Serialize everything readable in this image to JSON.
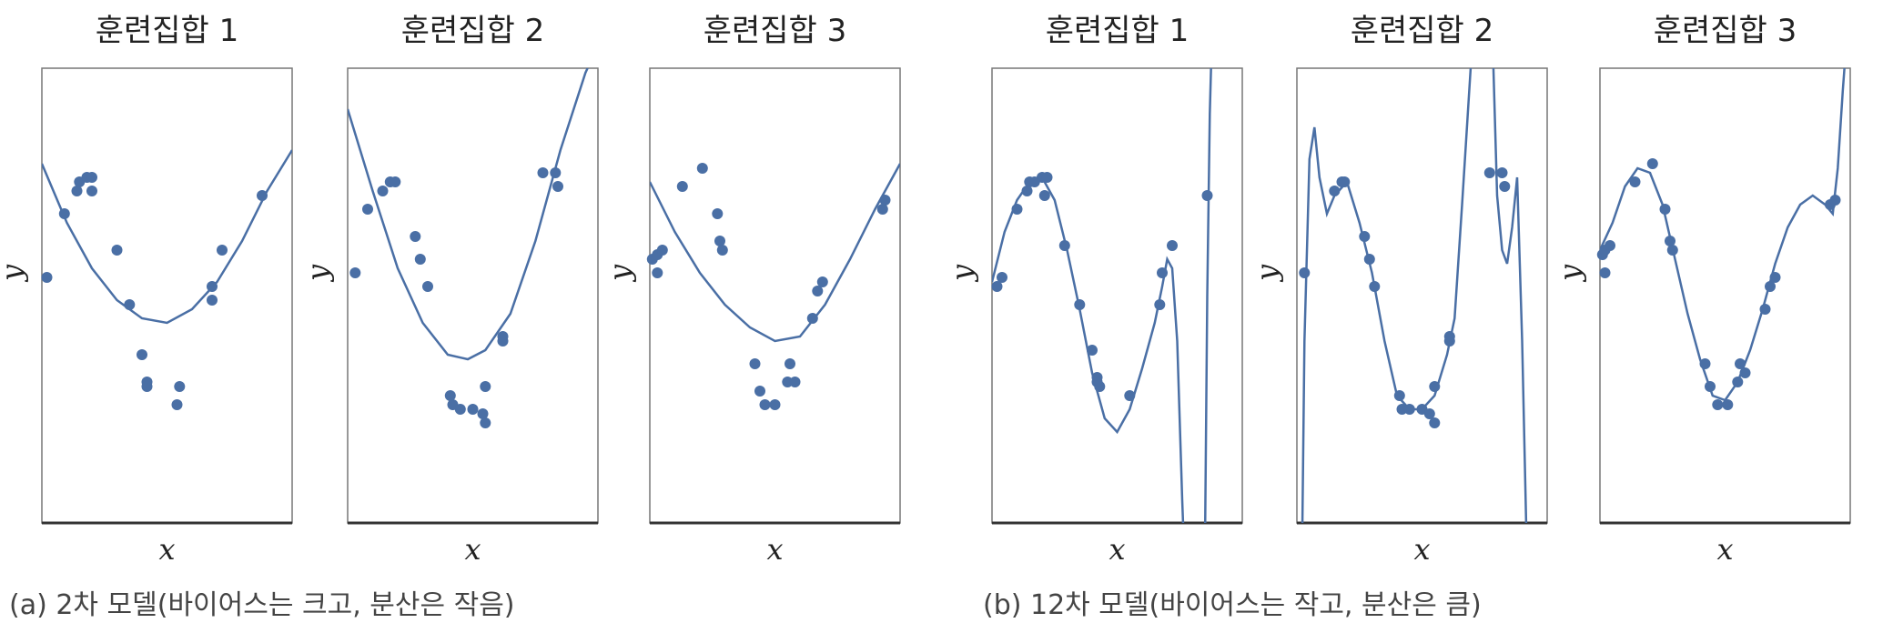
{
  "captions": {
    "a": "(a) 2차 모델(바이어스는 크고, 분산은 작음)",
    "b": "(b) 12차 모델(바이어스는 작고, 분산은 큼)"
  },
  "colors": {
    "series": "#4a6fa5",
    "frame": "#333333",
    "text": "#222222"
  },
  "chart_data": [
    {
      "type": "scatter",
      "group": "a",
      "title": "훈련집합 1",
      "xlabel": "x",
      "ylabel": "y",
      "xlim": [
        0,
        1
      ],
      "ylim": [
        0,
        1
      ],
      "grid": false,
      "points": [
        [
          0.02,
          0.54
        ],
        [
          0.09,
          0.68
        ],
        [
          0.14,
          0.73
        ],
        [
          0.15,
          0.75
        ],
        [
          0.18,
          0.76
        ],
        [
          0.2,
          0.76
        ],
        [
          0.2,
          0.73
        ],
        [
          0.3,
          0.6
        ],
        [
          0.35,
          0.48
        ],
        [
          0.4,
          0.37
        ],
        [
          0.42,
          0.31
        ],
        [
          0.42,
          0.3
        ],
        [
          0.55,
          0.3
        ],
        [
          0.54,
          0.26
        ],
        [
          0.68,
          0.49
        ],
        [
          0.68,
          0.52
        ],
        [
          0.72,
          0.6
        ],
        [
          0.88,
          0.72
        ]
      ],
      "curve": [
        [
          0,
          0.79
        ],
        [
          0.1,
          0.66
        ],
        [
          0.2,
          0.56
        ],
        [
          0.3,
          0.49
        ],
        [
          0.4,
          0.45
        ],
        [
          0.5,
          0.44
        ],
        [
          0.6,
          0.47
        ],
        [
          0.7,
          0.53
        ],
        [
          0.8,
          0.62
        ],
        [
          0.9,
          0.73
        ],
        [
          1,
          0.82
        ]
      ]
    },
    {
      "type": "scatter",
      "group": "a",
      "title": "훈련집합 2",
      "xlabel": "x",
      "ylabel": "y",
      "xlim": [
        0,
        1
      ],
      "ylim": [
        0,
        1
      ],
      "grid": false,
      "points": [
        [
          0.03,
          0.55
        ],
        [
          0.08,
          0.69
        ],
        [
          0.14,
          0.73
        ],
        [
          0.17,
          0.75
        ],
        [
          0.19,
          0.75
        ],
        [
          0.27,
          0.63
        ],
        [
          0.29,
          0.58
        ],
        [
          0.32,
          0.52
        ],
        [
          0.41,
          0.28
        ],
        [
          0.42,
          0.26
        ],
        [
          0.45,
          0.25
        ],
        [
          0.5,
          0.25
        ],
        [
          0.54,
          0.24
        ],
        [
          0.55,
          0.22
        ],
        [
          0.55,
          0.3
        ],
        [
          0.62,
          0.4
        ],
        [
          0.62,
          0.41
        ],
        [
          0.78,
          0.77
        ],
        [
          0.83,
          0.77
        ],
        [
          0.84,
          0.74
        ]
      ],
      "curve": [
        [
          0,
          0.91
        ],
        [
          0.1,
          0.73
        ],
        [
          0.2,
          0.56
        ],
        [
          0.3,
          0.44
        ],
        [
          0.4,
          0.37
        ],
        [
          0.48,
          0.36
        ],
        [
          0.55,
          0.38
        ],
        [
          0.65,
          0.46
        ],
        [
          0.75,
          0.62
        ],
        [
          0.85,
          0.82
        ],
        [
          0.95,
          0.99
        ],
        [
          1,
          1.05
        ]
      ]
    },
    {
      "type": "scatter",
      "group": "a",
      "title": "훈련집합 3",
      "xlabel": "x",
      "ylabel": "y",
      "xlim": [
        0,
        1
      ],
      "ylim": [
        0,
        1
      ],
      "grid": false,
      "points": [
        [
          0.01,
          0.58
        ],
        [
          0.03,
          0.59
        ],
        [
          0.05,
          0.6
        ],
        [
          0.03,
          0.55
        ],
        [
          0.13,
          0.74
        ],
        [
          0.21,
          0.78
        ],
        [
          0.27,
          0.68
        ],
        [
          0.28,
          0.62
        ],
        [
          0.29,
          0.6
        ],
        [
          0.42,
          0.35
        ],
        [
          0.44,
          0.29
        ],
        [
          0.46,
          0.26
        ],
        [
          0.5,
          0.26
        ],
        [
          0.55,
          0.31
        ],
        [
          0.56,
          0.35
        ],
        [
          0.58,
          0.31
        ],
        [
          0.65,
          0.45
        ],
        [
          0.67,
          0.51
        ],
        [
          0.69,
          0.53
        ],
        [
          0.93,
          0.69
        ],
        [
          0.94,
          0.71
        ]
      ],
      "curve": [
        [
          0,
          0.75
        ],
        [
          0.1,
          0.64
        ],
        [
          0.2,
          0.55
        ],
        [
          0.3,
          0.48
        ],
        [
          0.4,
          0.43
        ],
        [
          0.5,
          0.4
        ],
        [
          0.6,
          0.41
        ],
        [
          0.7,
          0.48
        ],
        [
          0.8,
          0.58
        ],
        [
          0.9,
          0.69
        ],
        [
          1,
          0.79
        ]
      ]
    },
    {
      "type": "scatter",
      "group": "b",
      "title": "훈련집합 1",
      "xlabel": "x",
      "ylabel": "y",
      "xlim": [
        0,
        1
      ],
      "ylim": [
        0,
        1
      ],
      "grid": false,
      "points": [
        [
          0.02,
          0.52
        ],
        [
          0.04,
          0.54
        ],
        [
          0.1,
          0.69
        ],
        [
          0.14,
          0.73
        ],
        [
          0.15,
          0.75
        ],
        [
          0.17,
          0.75
        ],
        [
          0.2,
          0.76
        ],
        [
          0.22,
          0.76
        ],
        [
          0.21,
          0.72
        ],
        [
          0.29,
          0.61
        ],
        [
          0.35,
          0.48
        ],
        [
          0.4,
          0.38
        ],
        [
          0.42,
          0.31
        ],
        [
          0.42,
          0.32
        ],
        [
          0.43,
          0.3
        ],
        [
          0.55,
          0.28
        ],
        [
          0.67,
          0.48
        ],
        [
          0.68,
          0.55
        ],
        [
          0.72,
          0.61
        ],
        [
          0.86,
          0.72
        ]
      ],
      "curve": [
        [
          0,
          0.53
        ],
        [
          0.05,
          0.64
        ],
        [
          0.1,
          0.71
        ],
        [
          0.15,
          0.75
        ],
        [
          0.2,
          0.76
        ],
        [
          0.25,
          0.71
        ],
        [
          0.3,
          0.6
        ],
        [
          0.35,
          0.47
        ],
        [
          0.4,
          0.33
        ],
        [
          0.45,
          0.23
        ],
        [
          0.5,
          0.2
        ],
        [
          0.55,
          0.25
        ],
        [
          0.6,
          0.34
        ],
        [
          0.65,
          0.44
        ],
        [
          0.68,
          0.52
        ],
        [
          0.7,
          0.58
        ],
        [
          0.72,
          0.56
        ],
        [
          0.74,
          0.4
        ],
        [
          0.76,
          0.05
        ],
        [
          0.77,
          -0.1
        ]
      ],
      "curve_extra": [
        [
          0.85,
          -0.1
        ],
        [
          0.86,
          0.5
        ],
        [
          0.87,
          0.9
        ],
        [
          0.88,
          1.1
        ]
      ]
    },
    {
      "type": "scatter",
      "group": "b",
      "title": "훈련집합 2",
      "xlabel": "x",
      "ylabel": "y",
      "xlim": [
        0,
        1
      ],
      "ylim": [
        0,
        1
      ],
      "grid": false,
      "points": [
        [
          0.03,
          0.55
        ],
        [
          0.15,
          0.73
        ],
        [
          0.18,
          0.75
        ],
        [
          0.19,
          0.75
        ],
        [
          0.27,
          0.63
        ],
        [
          0.29,
          0.58
        ],
        [
          0.31,
          0.52
        ],
        [
          0.41,
          0.28
        ],
        [
          0.42,
          0.25
        ],
        [
          0.45,
          0.25
        ],
        [
          0.5,
          0.25
        ],
        [
          0.53,
          0.24
        ],
        [
          0.55,
          0.22
        ],
        [
          0.55,
          0.3
        ],
        [
          0.61,
          0.4
        ],
        [
          0.61,
          0.41
        ],
        [
          0.77,
          0.77
        ],
        [
          0.82,
          0.77
        ],
        [
          0.83,
          0.74
        ]
      ],
      "curve": [
        [
          0.02,
          -0.1
        ],
        [
          0.03,
          0.4
        ],
        [
          0.05,
          0.8
        ],
        [
          0.07,
          0.87
        ],
        [
          0.09,
          0.76
        ],
        [
          0.12,
          0.68
        ],
        [
          0.15,
          0.72
        ],
        [
          0.2,
          0.75
        ],
        [
          0.25,
          0.66
        ],
        [
          0.3,
          0.55
        ],
        [
          0.35,
          0.4
        ],
        [
          0.4,
          0.28
        ],
        [
          0.45,
          0.25
        ],
        [
          0.5,
          0.25
        ],
        [
          0.55,
          0.28
        ],
        [
          0.6,
          0.37
        ],
        [
          0.63,
          0.45
        ],
        [
          0.66,
          0.7
        ],
        [
          0.7,
          1.05
        ]
      ],
      "curve_extra": [
        [
          0.78,
          1.1
        ],
        [
          0.8,
          0.72
        ],
        [
          0.82,
          0.6
        ],
        [
          0.84,
          0.57
        ],
        [
          0.86,
          0.65
        ],
        [
          0.88,
          0.76
        ],
        [
          0.9,
          0.4
        ],
        [
          0.92,
          -0.1
        ]
      ]
    },
    {
      "type": "scatter",
      "group": "b",
      "title": "훈련집합 3",
      "xlabel": "x",
      "ylabel": "y",
      "xlim": [
        0,
        1
      ],
      "ylim": [
        0,
        1
      ],
      "grid": false,
      "points": [
        [
          0.01,
          0.59
        ],
        [
          0.02,
          0.6
        ],
        [
          0.04,
          0.61
        ],
        [
          0.02,
          0.55
        ],
        [
          0.14,
          0.75
        ],
        [
          0.21,
          0.79
        ],
        [
          0.26,
          0.69
        ],
        [
          0.28,
          0.62
        ],
        [
          0.29,
          0.6
        ],
        [
          0.42,
          0.35
        ],
        [
          0.44,
          0.3
        ],
        [
          0.47,
          0.26
        ],
        [
          0.51,
          0.26
        ],
        [
          0.55,
          0.31
        ],
        [
          0.56,
          0.35
        ],
        [
          0.58,
          0.33
        ],
        [
          0.66,
          0.47
        ],
        [
          0.68,
          0.52
        ],
        [
          0.7,
          0.54
        ],
        [
          0.92,
          0.7
        ],
        [
          0.94,
          0.71
        ]
      ],
      "curve": [
        [
          0,
          0.6
        ],
        [
          0.05,
          0.66
        ],
        [
          0.1,
          0.74
        ],
        [
          0.15,
          0.78
        ],
        [
          0.2,
          0.77
        ],
        [
          0.25,
          0.7
        ],
        [
          0.3,
          0.58
        ],
        [
          0.35,
          0.46
        ],
        [
          0.4,
          0.36
        ],
        [
          0.45,
          0.28
        ],
        [
          0.5,
          0.27
        ],
        [
          0.55,
          0.31
        ],
        [
          0.6,
          0.38
        ],
        [
          0.65,
          0.47
        ],
        [
          0.7,
          0.57
        ],
        [
          0.75,
          0.65
        ],
        [
          0.8,
          0.7
        ],
        [
          0.85,
          0.72
        ],
        [
          0.9,
          0.7
        ],
        [
          0.93,
          0.68
        ],
        [
          0.95,
          0.78
        ],
        [
          0.97,
          0.95
        ],
        [
          0.99,
          1.1
        ]
      ]
    }
  ]
}
